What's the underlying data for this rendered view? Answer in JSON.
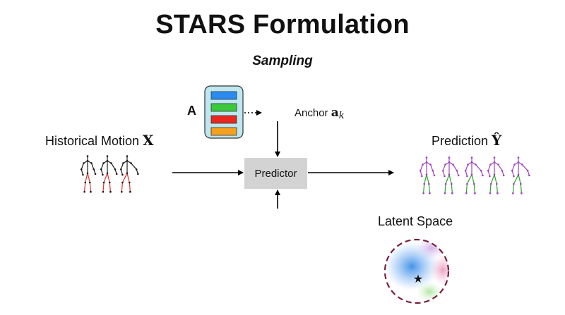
{
  "title": "STARS Formulation",
  "subtitle": "Sampling",
  "anchors": {
    "symbol": "A",
    "colors": [
      "#2a8cf0",
      "#3cc83c",
      "#e8281e",
      "#f5a01e"
    ],
    "panel_color": "#bde8ef"
  },
  "anchor_label": {
    "text": "Anchor ",
    "symbol": "a",
    "subscript": "k"
  },
  "historical": {
    "text": "Historical Motion ",
    "symbol": "X"
  },
  "prediction": {
    "text": "Prediction ",
    "symbol": "Ŷ"
  },
  "predictor": {
    "label": "Predictor"
  },
  "latent": {
    "label": "Latent Space",
    "border_color": "#7a1e3a"
  },
  "skeleton_colors": {
    "past_joint": "#e03030",
    "past_limb": "#1a1a1a",
    "future_joint": "#30a030",
    "future_limb": "#a040c0"
  }
}
